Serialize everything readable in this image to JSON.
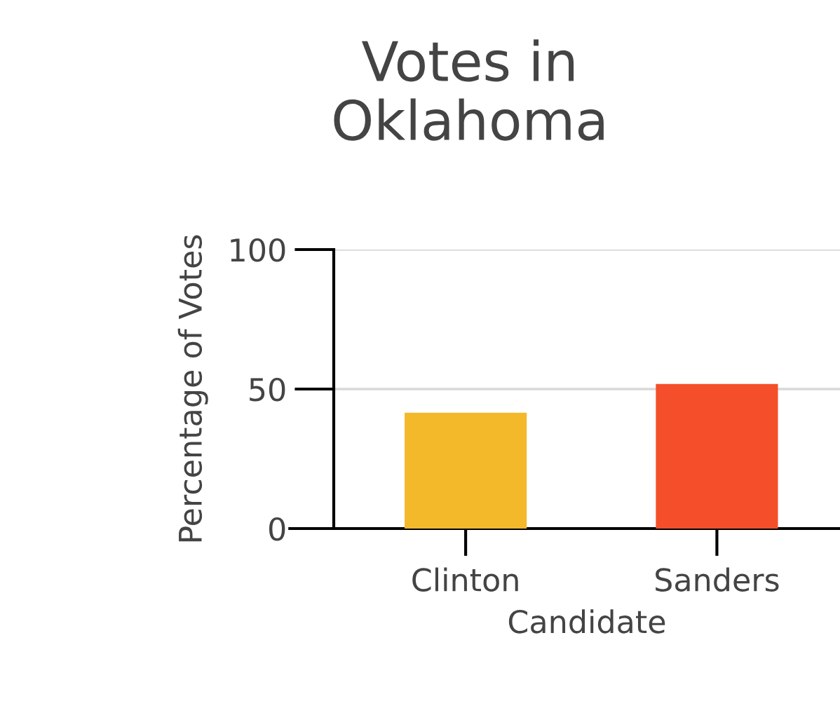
{
  "chart_data": {
    "type": "bar",
    "title": "Votes in\nOklahoma",
    "xlabel": "Candidate",
    "ylabel": "Percentage of Votes",
    "categories": [
      "Clinton",
      "Sanders"
    ],
    "values": [
      41.5,
      51.8
    ],
    "colors": [
      "#f4b82b",
      "#f44f2a"
    ],
    "ylim": [
      0,
      100
    ],
    "yticks": [
      0,
      50,
      100
    ],
    "grid": "y"
  }
}
